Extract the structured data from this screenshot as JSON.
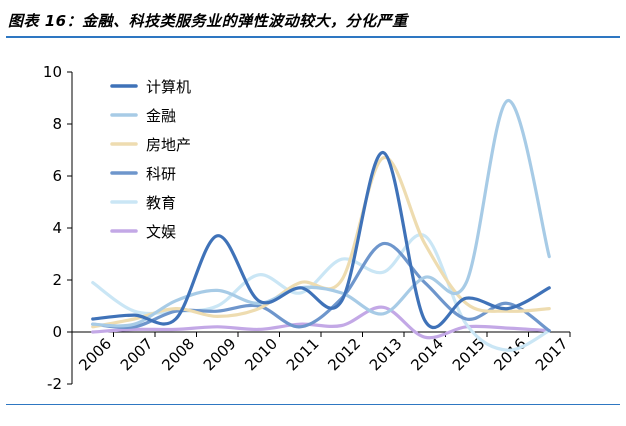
{
  "caption": "图表 16：金融、科技类服务业的弹性波动较大，分化严重",
  "colors": {
    "accent_rule": "#2e77c2",
    "axis": "#000000"
  },
  "chart_data": {
    "type": "line",
    "title": "",
    "xlabel": "",
    "ylabel": "",
    "ylim": [
      -2,
      10
    ],
    "yticks": [
      -2,
      0,
      2,
      4,
      6,
      8,
      10
    ],
    "categories": [
      "2006",
      "2007",
      "2008",
      "2009",
      "2010",
      "2011",
      "2012",
      "2013",
      "2014",
      "2015",
      "2016",
      "2017"
    ],
    "smooth": true,
    "grid": false,
    "legend_position": "top-left",
    "series": [
      {
        "name": "计算机",
        "color": "#3f72b8",
        "values": [
          0.5,
          0.65,
          0.5,
          3.7,
          1.2,
          1.7,
          1.2,
          6.9,
          0.45,
          1.3,
          0.9,
          1.7
        ]
      },
      {
        "name": "金融",
        "color": "#a7cbe6",
        "values": [
          0.3,
          0.3,
          1.2,
          1.6,
          1.1,
          1.7,
          1.5,
          0.7,
          2.1,
          1.9,
          8.9,
          2.9
        ]
      },
      {
        "name": "房地产",
        "color": "#eedcb0",
        "values": [
          0.2,
          0.5,
          0.9,
          0.6,
          0.9,
          1.9,
          2.0,
          6.7,
          3.4,
          1.1,
          0.8,
          0.9
        ]
      },
      {
        "name": "科研",
        "color": "#6e96cc",
        "values": [
          0.3,
          0.2,
          0.8,
          0.8,
          1.0,
          0.2,
          1.3,
          3.4,
          1.9,
          0.5,
          1.1,
          0.05
        ]
      },
      {
        "name": "教育",
        "color": "#cae6f5",
        "values": [
          1.9,
          0.8,
          0.8,
          1.0,
          2.2,
          1.5,
          2.8,
          2.3,
          3.7,
          0.3,
          -0.7,
          0.05
        ]
      },
      {
        "name": "文娱",
        "color": "#c3a8e6",
        "values": [
          0.0,
          0.1,
          0.1,
          0.2,
          0.1,
          0.3,
          0.25,
          0.95,
          -0.2,
          0.2,
          0.15,
          0.05
        ]
      }
    ]
  }
}
